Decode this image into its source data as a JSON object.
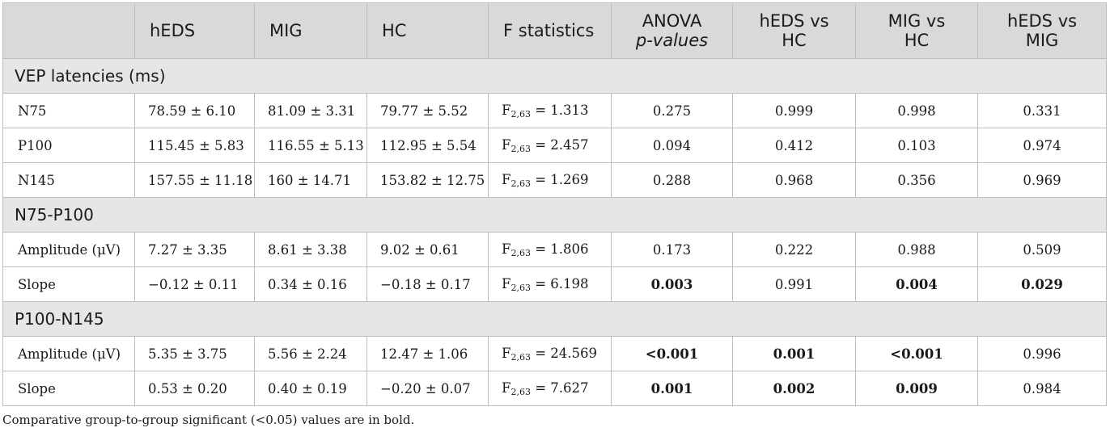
{
  "table": {
    "headers": [
      {
        "line1": "",
        "line2": ""
      },
      {
        "line1": "hEDS",
        "line2": ""
      },
      {
        "line1": "MIG",
        "line2": ""
      },
      {
        "line1": "HC",
        "line2": ""
      },
      {
        "line1": "F statistics",
        "line2": ""
      },
      {
        "line1": "ANOVA",
        "line2": "p-values"
      },
      {
        "line1": "hEDS vs",
        "line2": "HC"
      },
      {
        "line1": "MIG vs",
        "line2": "HC"
      },
      {
        "line1": "hEDS vs",
        "line2": "MIG"
      }
    ],
    "sections": [
      {
        "title": "VEP latencies (ms)",
        "rows": [
          {
            "label": "N75",
            "hEDS": "78.59 ± 6.10",
            "MIG": "81.09 ± 3.31",
            "HC": "79.77 ± 5.52",
            "F_prefix": "F",
            "F_sub": "2,63",
            "F_value": " = 1.313",
            "anova": "0.275",
            "heds_vs_hc": "0.999",
            "mig_vs_hc": "0.998",
            "heds_vs_mig": "0.331"
          },
          {
            "label": "P100",
            "hEDS": "115.45 ± 5.83",
            "MIG": "116.55 ± 5.13",
            "HC": "112.95 ± 5.54",
            "F_prefix": "F",
            "F_sub": "2,63",
            "F_value": " = 2.457",
            "anova": "0.094",
            "heds_vs_hc": "0.412",
            "mig_vs_hc": "0.103",
            "heds_vs_mig": "0.974"
          },
          {
            "label": "N145",
            "hEDS": "157.55 ± 11.18",
            "MIG": "160 ± 14.71",
            "HC": "153.82 ± 12.75",
            "F_prefix": "F",
            "F_sub": "2,63",
            "F_value": " = 1.269",
            "anova": "0.288",
            "heds_vs_hc": "0.968",
            "mig_vs_hc": "0.356",
            "heds_vs_mig": "0.969"
          }
        ]
      },
      {
        "title": "N75-P100",
        "rows": [
          {
            "label": "Amplitude (μV)",
            "hEDS": "7.27 ± 3.35",
            "MIG": "8.61 ± 3.38",
            "HC": "9.02 ± 0.61",
            "F_prefix": "F",
            "F_sub": "2,63",
            "F_value": " = 1.806",
            "anova": "0.173",
            "heds_vs_hc": "0.222",
            "mig_vs_hc": "0.988",
            "heds_vs_mig": "0.509"
          },
          {
            "label": "Slope",
            "hEDS": "−0.12 ± 0.11",
            "MIG": "0.34 ± 0.16",
            "HC": "−0.18 ± 0.17",
            "F_prefix": "F",
            "F_sub": "2,63",
            "F_value": " = 6.198",
            "anova": "0.003",
            "heds_vs_hc": "0.991",
            "mig_vs_hc": "0.004",
            "heds_vs_mig": "0.029"
          }
        ]
      },
      {
        "title": "P100-N145",
        "rows": [
          {
            "label": "Amplitude (μV)",
            "hEDS": "5.35 ± 3.75",
            "MIG": "5.56 ± 2.24",
            "HC": "12.47 ± 1.06",
            "F_prefix": "F",
            "F_sub": "2,63",
            "F_value": " = 24.569",
            "anova": "<0.001",
            "heds_vs_hc": "0.001",
            "mig_vs_hc": "<0.001",
            "heds_vs_mig": "0.996"
          },
          {
            "label": "Slope",
            "hEDS": "0.53 ± 0.20",
            "MIG": "0.40 ± 0.19",
            "HC": "−0.20 ± 0.07",
            "F_prefix": "F",
            "F_sub": "2,63",
            "F_value": " = 7.627",
            "anova": "0.001",
            "heds_vs_hc": "0.002",
            "mig_vs_hc": "0.009",
            "heds_vs_mig": "0.984"
          }
        ]
      }
    ]
  },
  "footnote": "Comparative group-to-group significant (<0.05) values are in bold."
}
